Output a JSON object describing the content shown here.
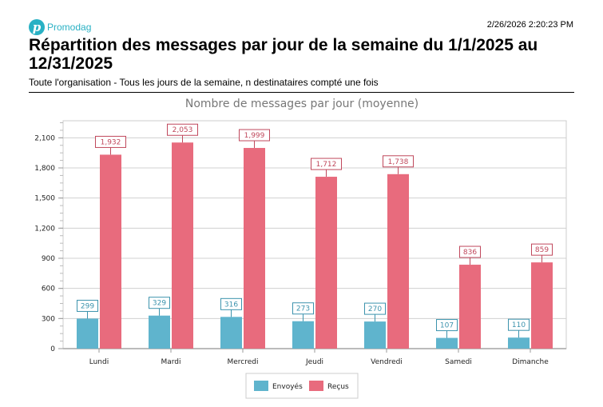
{
  "header": {
    "logo_text": "Promodag",
    "logo_letter": "p",
    "timestamp": "2/26/2026 2:20:23 PM",
    "title": "Répartition des messages par jour de la semaine du 1/1/2025 au 12/31/2025",
    "subtitle": "Toute l'organisation - Tous les jours de la semaine, n destinataires compté une fois"
  },
  "chart_data": {
    "type": "bar",
    "title": "Nombre de messages par jour (moyenne)",
    "categories": [
      "Lundi",
      "Mardi",
      "Mercredi",
      "Jeudi",
      "Vendredi",
      "Samedi",
      "Dimanche"
    ],
    "series": [
      {
        "name": "Envoyés",
        "color": "#5fb4cd",
        "values": [
          299,
          329,
          316,
          273,
          270,
          107,
          110
        ]
      },
      {
        "name": "Reçus",
        "color": "#e86b7d",
        "values": [
          1932,
          2053,
          1999,
          1712,
          1738,
          836,
          859
        ]
      }
    ],
    "yticks": [
      0,
      300,
      600,
      900,
      1200,
      1500,
      1800,
      2100
    ],
    "ytick_labels": [
      "0",
      "300",
      "600",
      "900",
      "1,200",
      "1,500",
      "1,800",
      "2,100"
    ],
    "ylim": [
      0,
      2270
    ],
    "grid": true,
    "legend": "bottom"
  }
}
